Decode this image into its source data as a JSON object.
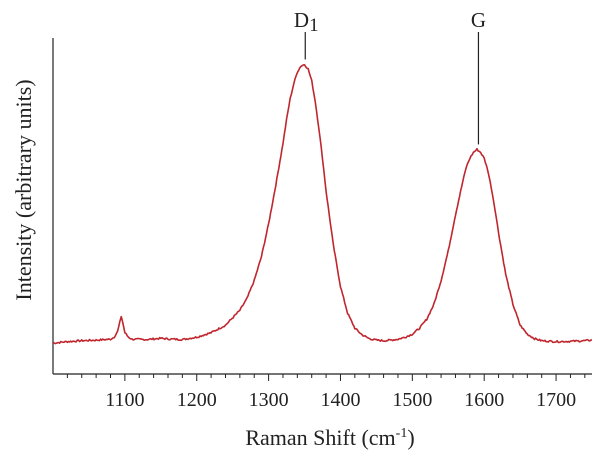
{
  "chart_data": {
    "type": "line",
    "xlabel": "Raman Shift (cm",
    "xlabel_superscript": "-1",
    "xlabel_suffix": ")",
    "ylabel": "Intensity (arbitrary units)",
    "xlim": [
      1000,
      1750
    ],
    "ylim": [
      0,
      1.0
    ],
    "xticks": [
      1100,
      1200,
      1300,
      1400,
      1500,
      1600,
      1700
    ],
    "xtick_labels": [
      "1100",
      "1200",
      "1300",
      "1400",
      "1500",
      "1600",
      "1700"
    ],
    "minor_tick_step": 20,
    "grid": false,
    "series": [
      {
        "color": "#c0262e",
        "x": [
          1000,
          1020,
          1040,
          1060,
          1080,
          1085,
          1090,
          1093,
          1095,
          1097,
          1100,
          1105,
          1110,
          1130,
          1150,
          1160,
          1180,
          1200,
          1220,
          1240,
          1260,
          1270,
          1280,
          1290,
          1300,
          1310,
          1320,
          1325,
          1330,
          1335,
          1340,
          1345,
          1350,
          1355,
          1360,
          1365,
          1370,
          1375,
          1380,
          1390,
          1400,
          1410,
          1420,
          1430,
          1440,
          1450,
          1460,
          1470,
          1480,
          1490,
          1500,
          1510,
          1520,
          1530,
          1540,
          1550,
          1560,
          1570,
          1575,
          1580,
          1585,
          1590,
          1595,
          1600,
          1605,
          1610,
          1615,
          1620,
          1630,
          1640,
          1650,
          1660,
          1670,
          1680,
          1700,
          1720,
          1740,
          1750
        ],
        "y": [
          0.05,
          0.055,
          0.058,
          0.06,
          0.063,
          0.07,
          0.09,
          0.12,
          0.14,
          0.12,
          0.085,
          0.07,
          0.063,
          0.062,
          0.066,
          0.064,
          0.062,
          0.07,
          0.085,
          0.11,
          0.16,
          0.2,
          0.26,
          0.34,
          0.45,
          0.58,
          0.72,
          0.8,
          0.87,
          0.92,
          0.96,
          0.98,
          0.985,
          0.97,
          0.93,
          0.86,
          0.77,
          0.67,
          0.56,
          0.38,
          0.24,
          0.15,
          0.1,
          0.078,
          0.065,
          0.06,
          0.058,
          0.06,
          0.063,
          0.07,
          0.08,
          0.1,
          0.13,
          0.18,
          0.26,
          0.36,
          0.48,
          0.59,
          0.64,
          0.67,
          0.69,
          0.7,
          0.69,
          0.67,
          0.63,
          0.57,
          0.5,
          0.42,
          0.28,
          0.18,
          0.11,
          0.08,
          0.065,
          0.058,
          0.055,
          0.056,
          0.058,
          0.06
        ]
      }
    ],
    "annotations": [
      {
        "label": "D",
        "subscript": "1",
        "x": 1351,
        "y": 0.985
      },
      {
        "label": "G",
        "subscript": "",
        "x": 1592,
        "y": 0.7
      }
    ]
  }
}
